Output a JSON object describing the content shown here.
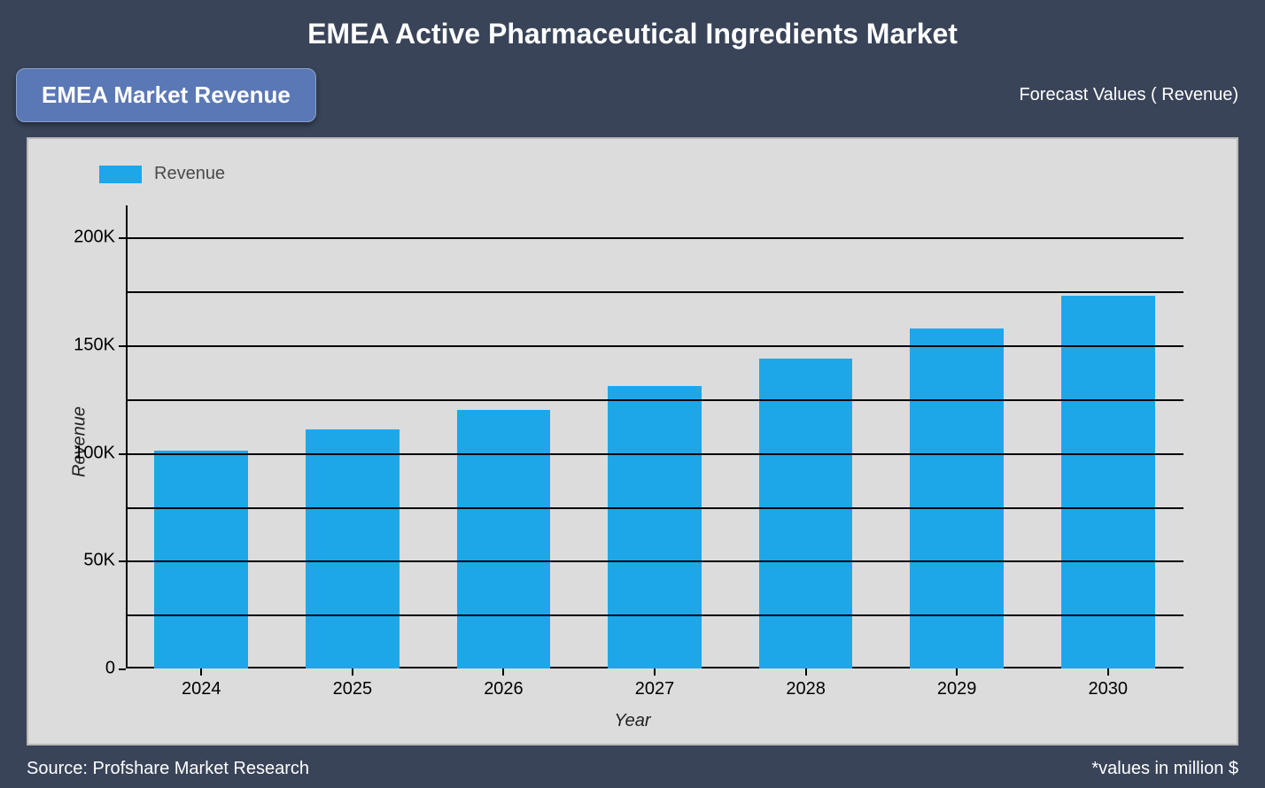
{
  "title": "EMEA Active Pharmaceutical Ingredients Market",
  "subtitle": "EMEA Market Revenue",
  "forecast_label": "Forecast Values ( Revenue)",
  "footer_left": "Source: Profshare Market Research",
  "footer_right": "*values in million $",
  "chart": {
    "type": "bar",
    "legend_label": "Revenue",
    "xlabel": "Year",
    "ylabel": "Revenue",
    "categories": [
      "2024",
      "2025",
      "2026",
      "2027",
      "2028",
      "2029",
      "2030"
    ],
    "values": [
      101000,
      111000,
      120000,
      131000,
      144000,
      158000,
      173000
    ],
    "ymin": 0,
    "ymax": 215000,
    "yticks": [
      0,
      50000,
      100000,
      150000,
      200000
    ],
    "ytick_labels": [
      "0",
      "50K",
      "100K",
      "150K",
      "200K"
    ],
    "grid_yvalues": [
      25000,
      50000,
      75000,
      100000,
      125000,
      150000,
      175000,
      200000
    ],
    "bar_color": "#1ea7e8",
    "background_color": "#394459",
    "plot_background": "#dcdcdc",
    "badge_color": "#5b78b6",
    "grid_color": "#000000",
    "text_color": "#ffffff",
    "axis_text_color": "#000000",
    "bar_width_ratio": 0.62
  }
}
